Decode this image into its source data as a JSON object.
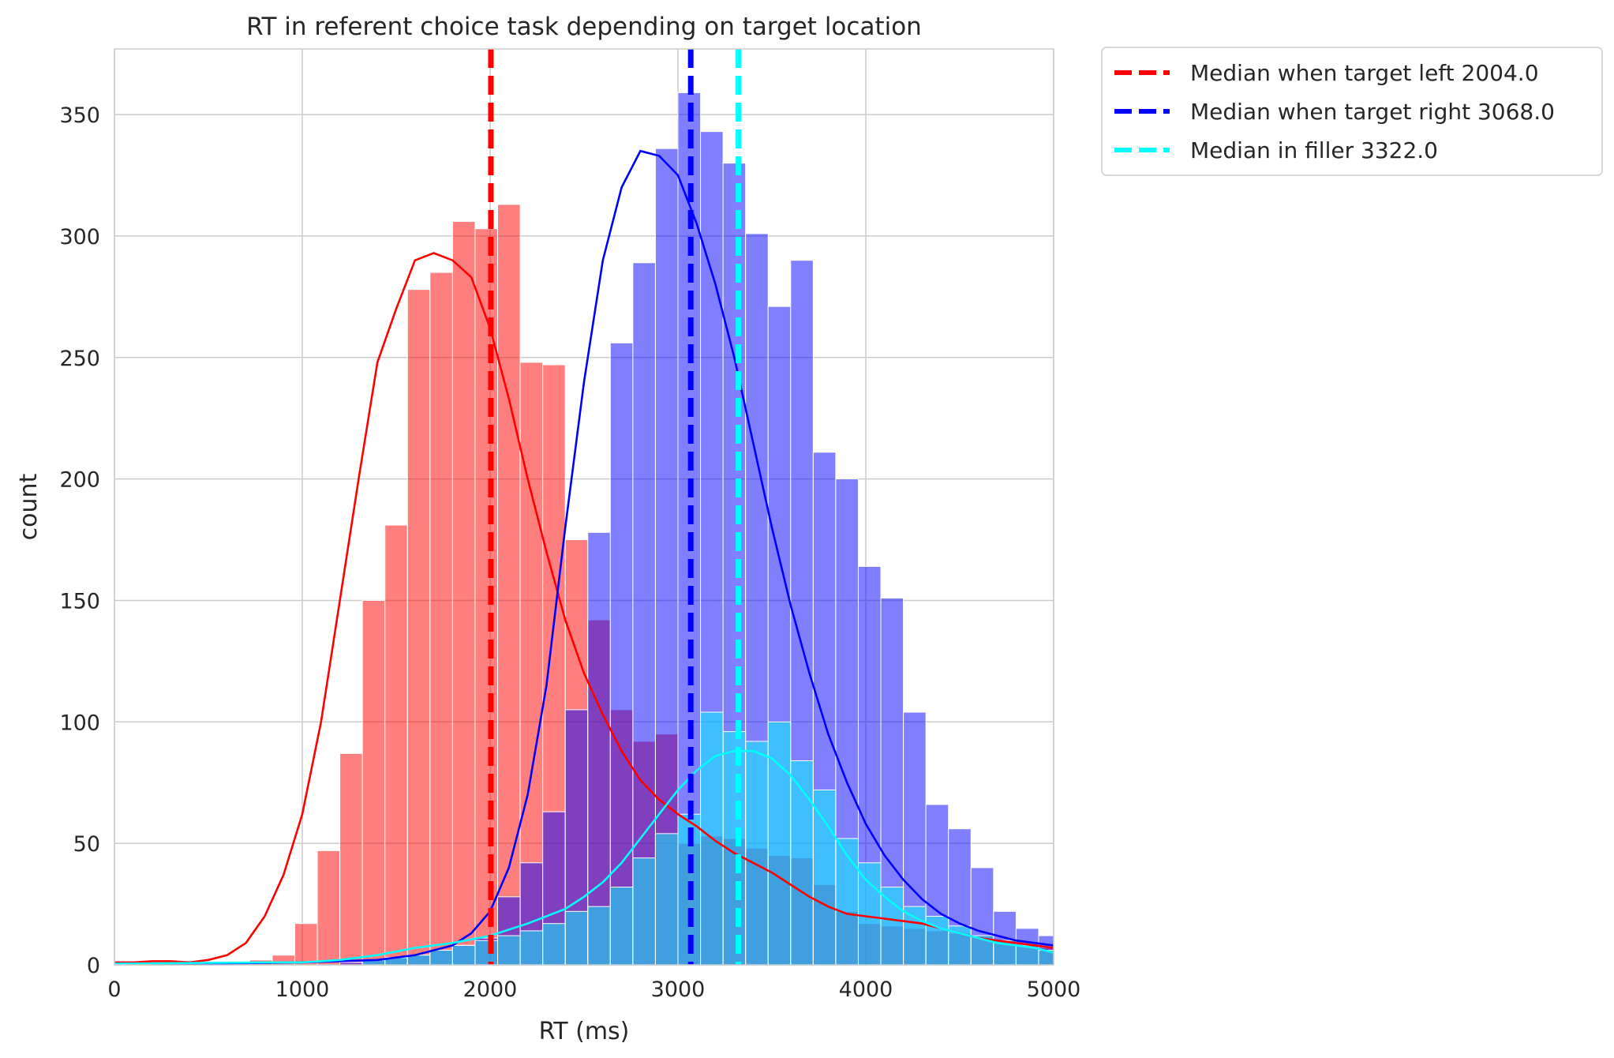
{
  "chart_data": {
    "type": "histogram",
    "title": "RT in referent choice task depending on target location",
    "xlabel": "RT (ms)",
    "ylabel": "count",
    "xlim": [
      0,
      5000
    ],
    "ylim": [
      0,
      377
    ],
    "xticks": [
      0,
      1000,
      2000,
      3000,
      4000,
      5000
    ],
    "yticks": [
      0,
      50,
      100,
      150,
      200,
      250,
      300,
      350
    ],
    "grid": true,
    "legend_position": "outside-top-right",
    "bin_edges": [
      0,
      120,
      240,
      360,
      480,
      600,
      720,
      840,
      960,
      1080,
      1200,
      1320,
      1440,
      1560,
      1680,
      1800,
      1920,
      2040,
      2160,
      2280,
      2400,
      2520,
      2640,
      2760,
      2880,
      3000,
      3120,
      3240,
      3360,
      3480,
      3600,
      3720,
      3840,
      3960,
      4080,
      4200,
      4320,
      4440,
      4560,
      4680,
      4800,
      4920,
      5000
    ],
    "series": [
      {
        "name": "",
        "color": "#ff0000",
        "counts": [
          1,
          1,
          0,
          0,
          0,
          1,
          2,
          4,
          17,
          47,
          87,
          150,
          181,
          278,
          285,
          306,
          303,
          313,
          248,
          247,
          175,
          142,
          105,
          92,
          95,
          50,
          53,
          52,
          48,
          45,
          44,
          33,
          22,
          17,
          16,
          15,
          14,
          13,
          12,
          10,
          8,
          7
        ],
        "kde": [
          [
            0,
            1
          ],
          [
            100,
            1
          ],
          [
            200,
            1.5
          ],
          [
            300,
            1.5
          ],
          [
            400,
            1
          ],
          [
            500,
            2
          ],
          [
            600,
            4
          ],
          [
            700,
            9
          ],
          [
            800,
            20
          ],
          [
            900,
            37
          ],
          [
            1000,
            62
          ],
          [
            1100,
            100
          ],
          [
            1200,
            150
          ],
          [
            1300,
            200
          ],
          [
            1400,
            248
          ],
          [
            1500,
            270
          ],
          [
            1600,
            290
          ],
          [
            1700,
            293
          ],
          [
            1800,
            290
          ],
          [
            1900,
            283
          ],
          [
            2000,
            262
          ],
          [
            2100,
            233
          ],
          [
            2200,
            200
          ],
          [
            2300,
            170
          ],
          [
            2400,
            142
          ],
          [
            2500,
            120
          ],
          [
            2600,
            103
          ],
          [
            2700,
            88
          ],
          [
            2800,
            76
          ],
          [
            2900,
            68
          ],
          [
            3000,
            62
          ],
          [
            3100,
            57
          ],
          [
            3200,
            51
          ],
          [
            3300,
            46
          ],
          [
            3400,
            42
          ],
          [
            3500,
            38
          ],
          [
            3600,
            33
          ],
          [
            3700,
            28
          ],
          [
            3800,
            24
          ],
          [
            3900,
            21
          ],
          [
            4000,
            20
          ],
          [
            4100,
            19
          ],
          [
            4200,
            18
          ],
          [
            4300,
            17
          ],
          [
            4400,
            15
          ],
          [
            4500,
            13
          ],
          [
            4600,
            11
          ],
          [
            4700,
            10
          ],
          [
            4800,
            9
          ],
          [
            4900,
            8
          ],
          [
            5000,
            7
          ]
        ]
      },
      {
        "name": "",
        "color": "#0000ff",
        "counts": [
          0,
          0,
          0,
          0,
          0,
          0,
          0,
          0,
          0,
          0,
          1,
          2,
          3,
          4,
          6,
          8,
          11,
          28,
          42,
          63,
          105,
          178,
          256,
          289,
          336,
          359,
          343,
          330,
          301,
          271,
          290,
          211,
          200,
          164,
          151,
          104,
          66,
          56,
          40,
          22,
          15,
          12
        ],
        "kde": [
          [
            0,
            0.5
          ],
          [
            500,
            0.5
          ],
          [
            1000,
            1
          ],
          [
            1200,
            1.5
          ],
          [
            1400,
            2
          ],
          [
            1600,
            4
          ],
          [
            1800,
            8
          ],
          [
            1900,
            13
          ],
          [
            2000,
            22
          ],
          [
            2100,
            40
          ],
          [
            2200,
            70
          ],
          [
            2300,
            115
          ],
          [
            2400,
            180
          ],
          [
            2500,
            240
          ],
          [
            2600,
            290
          ],
          [
            2700,
            320
          ],
          [
            2800,
            335
          ],
          [
            2900,
            333
          ],
          [
            3000,
            325
          ],
          [
            3100,
            305
          ],
          [
            3200,
            280
          ],
          [
            3300,
            250
          ],
          [
            3400,
            215
          ],
          [
            3500,
            180
          ],
          [
            3600,
            148
          ],
          [
            3700,
            120
          ],
          [
            3800,
            95
          ],
          [
            3900,
            75
          ],
          [
            4000,
            58
          ],
          [
            4100,
            45
          ],
          [
            4200,
            35
          ],
          [
            4300,
            27
          ],
          [
            4400,
            21
          ],
          [
            4500,
            17
          ],
          [
            4600,
            14
          ],
          [
            4700,
            12
          ],
          [
            4800,
            10
          ],
          [
            4900,
            9
          ],
          [
            5000,
            8
          ]
        ]
      },
      {
        "name": "",
        "color": "#00ffff",
        "counts": [
          0,
          0,
          0,
          0,
          0,
          0,
          0,
          0,
          0,
          0,
          0,
          2,
          3,
          4,
          6,
          8,
          10,
          12,
          14,
          17,
          22,
          24,
          32,
          44,
          54,
          62,
          104,
          96,
          92,
          100,
          84,
          72,
          52,
          42,
          32,
          24,
          20,
          16,
          12,
          10,
          8,
          6
        ],
        "kde": [
          [
            0,
            0.5
          ],
          [
            800,
            1
          ],
          [
            1000,
            1
          ],
          [
            1100,
            1.5
          ],
          [
            1200,
            2
          ],
          [
            1400,
            4
          ],
          [
            1600,
            7
          ],
          [
            1800,
            9
          ],
          [
            2000,
            12
          ],
          [
            2200,
            17
          ],
          [
            2400,
            23
          ],
          [
            2500,
            28
          ],
          [
            2600,
            34
          ],
          [
            2700,
            42
          ],
          [
            2800,
            52
          ],
          [
            2900,
            62
          ],
          [
            3000,
            72
          ],
          [
            3100,
            80
          ],
          [
            3200,
            86
          ],
          [
            3300,
            88
          ],
          [
            3400,
            88
          ],
          [
            3500,
            85
          ],
          [
            3600,
            78
          ],
          [
            3700,
            68
          ],
          [
            3800,
            57
          ],
          [
            3900,
            45
          ],
          [
            4000,
            35
          ],
          [
            4100,
            28
          ],
          [
            4200,
            22
          ],
          [
            4300,
            18
          ],
          [
            4400,
            15
          ],
          [
            4500,
            13
          ],
          [
            4600,
            11
          ],
          [
            4700,
            9
          ],
          [
            4800,
            8
          ],
          [
            4900,
            7
          ],
          [
            5000,
            5
          ]
        ]
      }
    ],
    "medians": [
      {
        "label": "Median when target left 2004.0",
        "value": 2004.0,
        "color": "#ff0000"
      },
      {
        "label": "Median when target right 3068.0",
        "value": 3068.0,
        "color": "#0000ff"
      },
      {
        "label": "Median in filler 3322.0",
        "value": 3322.0,
        "color": "#00ffff"
      }
    ]
  }
}
